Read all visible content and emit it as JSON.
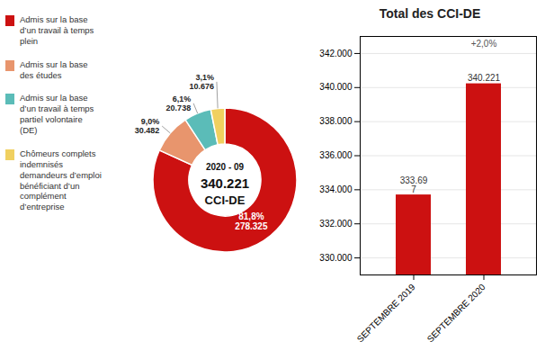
{
  "chart_data": [
    {
      "type": "pie",
      "categories": [
        "Admis sur la base\nd’un travail à temps\nplein",
        "Admis sur la base\ndes études",
        "Admis sur la base\nd’un travail à temps\npartiel volontaire\n(DE)",
        "Chômeurs complets\nindemnisés\ndemandeurs d’emploi\nbénéficiant d’un\ncomplément\nd’entreprise"
      ],
      "values": [
        278325,
        30482,
        20738,
        10676
      ],
      "value_labels": [
        "81,8%\n278.325",
        "9,0%\n30.482",
        "6,1%\n20.738",
        "3,1%\n10.676"
      ],
      "data_labels": true,
      "colors": [
        "#cc1111",
        "#e8956d",
        "#5bbcb8",
        "#f0d060"
      ],
      "annotations": [
        "2020 - 09",
        "340.221",
        "CCI-DE"
      ],
      "legend": "left"
    },
    {
      "type": "bar",
      "title": "Total des CCI-DE",
      "categories": [
        "SEPTEMBRE 2019",
        "SEPTEMBRE 2020"
      ],
      "values": [
        333697,
        340221
      ],
      "value_labels": [
        "333.69\n7",
        "340.221"
      ],
      "data_labels": true,
      "color": "#cc1111",
      "ylim": [
        329000,
        343000
      ],
      "yticks": [
        {
          "value": 330000,
          "label": "330.000"
        },
        {
          "value": 332000,
          "label": "332.000"
        },
        {
          "value": 334000,
          "label": "334.000"
        },
        {
          "value": 336000,
          "label": "336.000"
        },
        {
          "value": 338000,
          "label": "338.000"
        },
        {
          "value": 340000,
          "label": "340.000"
        },
        {
          "value": 342000,
          "label": "342.000"
        }
      ],
      "grid": true,
      "annotations": [
        {
          "text": "+2,0%",
          "x": "SEPTEMBRE 2020"
        }
      ]
    }
  ]
}
